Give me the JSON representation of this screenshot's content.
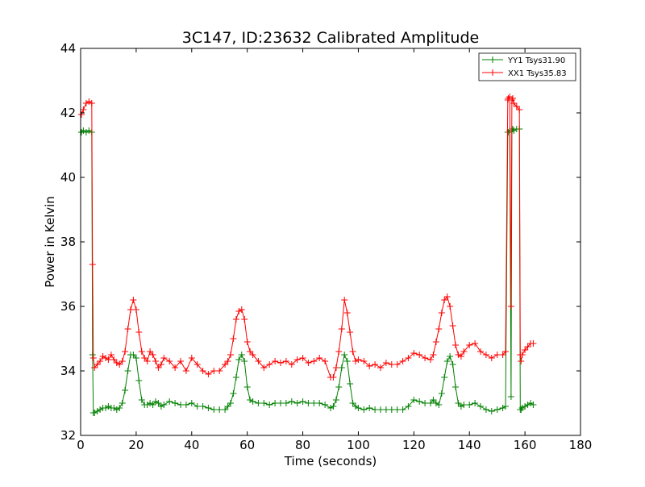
{
  "chart_data": {
    "type": "line",
    "title": "3C147, ID:23632 Calibrated Amplitude",
    "xlabel": "Time (seconds)",
    "ylabel": "Power in Kelvin",
    "xlim": [
      0,
      180
    ],
    "ylim": [
      32,
      44
    ],
    "xticks": [
      "0",
      "20",
      "40",
      "60",
      "80",
      "100",
      "120",
      "140",
      "160",
      "180"
    ],
    "yticks": [
      "32",
      "34",
      "36",
      "38",
      "40",
      "42",
      "44"
    ],
    "grid": false,
    "legend_position": "top-right",
    "marker": "+",
    "series": [
      {
        "name": "YY1 Tsys31.90",
        "color": "#008000",
        "x": [
          0.3,
          1.0,
          2.0,
          3.0,
          4.0,
          4.3,
          4.6,
          5.0,
          6.0,
          7.0,
          8.0,
          9.0,
          10.0,
          11.0,
          12.0,
          13.0,
          14.0,
          15.0,
          16.0,
          17.0,
          18.0,
          19.0,
          20.0,
          21.0,
          22.0,
          23.0,
          24.0,
          25.0,
          26.0,
          27.0,
          28.0,
          29.0,
          30.0,
          32.0,
          34.0,
          36.0,
          38.0,
          40.0,
          42.0,
          44.0,
          46.0,
          48.0,
          50.0,
          52.0,
          53.0,
          54.0,
          55.0,
          56.0,
          57.0,
          58.0,
          59.0,
          60.0,
          61.0,
          62.0,
          64.0,
          66.0,
          68.0,
          70.0,
          72.0,
          74.0,
          76.0,
          78.0,
          80.0,
          82.0,
          84.0,
          86.0,
          88.0,
          90.0,
          91.0,
          92.0,
          93.0,
          94.0,
          95.0,
          96.0,
          97.0,
          98.0,
          99.0,
          100.0,
          102.0,
          104.0,
          106.0,
          108.0,
          110.0,
          112.0,
          114.0,
          116.0,
          118.0,
          120.0,
          122.0,
          124.0,
          126.0,
          127.0,
          128.0,
          129.0,
          130.0,
          131.0,
          132.0,
          133.0,
          134.0,
          135.0,
          136.0,
          137.0,
          138.0,
          140.0,
          142.0,
          144.0,
          146.0,
          148.0,
          150.0,
          152.0,
          153.0,
          153.8,
          154.0,
          154.5,
          155.0,
          155.3,
          155.6,
          156.0,
          157.0,
          158.0,
          158.3,
          158.6,
          159.0,
          160.0,
          161.0,
          162.0,
          163.0
        ],
        "y": [
          41.4,
          41.45,
          41.4,
          41.45,
          41.4,
          34.5,
          32.7,
          32.7,
          32.75,
          32.8,
          32.85,
          32.85,
          32.9,
          32.85,
          32.85,
          32.8,
          32.85,
          33.0,
          33.4,
          34.0,
          34.5,
          34.5,
          34.4,
          33.7,
          33.1,
          32.95,
          32.95,
          33.0,
          32.95,
          33.05,
          33.0,
          32.9,
          32.95,
          33.05,
          33.0,
          32.95,
          32.95,
          33.0,
          32.9,
          32.9,
          32.85,
          32.8,
          32.8,
          32.8,
          32.9,
          33.0,
          33.3,
          33.8,
          34.35,
          34.5,
          34.3,
          33.5,
          33.1,
          33.05,
          33.0,
          33.0,
          32.95,
          33.0,
          33.0,
          33.0,
          33.05,
          33.0,
          33.05,
          33.0,
          33.0,
          33.0,
          32.95,
          32.85,
          32.9,
          33.1,
          33.5,
          34.1,
          34.5,
          34.3,
          33.6,
          33.0,
          32.9,
          32.85,
          32.8,
          32.85,
          32.8,
          32.8,
          32.8,
          32.8,
          32.8,
          32.8,
          32.9,
          33.1,
          33.05,
          33.0,
          33.0,
          33.1,
          33.0,
          32.95,
          33.3,
          33.8,
          34.3,
          34.45,
          34.2,
          33.5,
          33.0,
          32.9,
          32.95,
          32.95,
          33.0,
          32.9,
          32.8,
          32.75,
          32.8,
          32.85,
          32.9,
          41.4,
          41.4,
          41.45,
          33.2,
          41.45,
          41.5,
          41.45,
          41.5,
          41.5,
          32.8,
          32.8,
          32.85,
          32.9,
          32.95,
          33.0,
          32.95
        ]
      },
      {
        "name": "XX1 Tsys35.83",
        "color": "#ff0000",
        "x": [
          0.3,
          1.0,
          2.0,
          3.0,
          4.0,
          4.3,
          4.6,
          5.0,
          6.0,
          7.0,
          8.0,
          9.0,
          10.0,
          11.0,
          12.0,
          13.0,
          14.0,
          15.0,
          16.0,
          17.0,
          18.0,
          19.0,
          20.0,
          21.0,
          22.0,
          23.0,
          24.0,
          25.0,
          26.0,
          27.0,
          28.0,
          29.0,
          30.0,
          32.0,
          34.0,
          36.0,
          38.0,
          40.0,
          42.0,
          44.0,
          46.0,
          48.0,
          50.0,
          52.0,
          53.0,
          54.0,
          55.0,
          56.0,
          57.0,
          58.0,
          59.0,
          60.0,
          61.0,
          62.0,
          64.0,
          66.0,
          68.0,
          70.0,
          72.0,
          74.0,
          76.0,
          78.0,
          80.0,
          82.0,
          84.0,
          86.0,
          88.0,
          90.0,
          91.0,
          92.0,
          93.0,
          94.0,
          95.0,
          96.0,
          97.0,
          98.0,
          99.0,
          100.0,
          102.0,
          104.0,
          106.0,
          108.0,
          110.0,
          112.0,
          114.0,
          116.0,
          118.0,
          120.0,
          122.0,
          124.0,
          126.0,
          127.0,
          128.0,
          129.0,
          130.0,
          131.0,
          132.0,
          133.0,
          134.0,
          135.0,
          136.0,
          137.0,
          138.0,
          140.0,
          142.0,
          144.0,
          146.0,
          148.0,
          150.0,
          152.0,
          153.0,
          153.8,
          154.0,
          154.5,
          155.0,
          155.3,
          155.6,
          156.0,
          157.0,
          158.0,
          158.3,
          158.6,
          159.0,
          160.0,
          161.0,
          162.0,
          163.0
        ],
        "y": [
          41.95,
          42.1,
          42.3,
          42.35,
          42.3,
          37.3,
          34.4,
          34.1,
          34.2,
          34.3,
          34.45,
          34.4,
          34.35,
          34.5,
          34.35,
          34.25,
          34.2,
          34.3,
          34.6,
          35.3,
          35.9,
          36.2,
          35.9,
          35.2,
          34.6,
          34.4,
          34.3,
          34.6,
          34.5,
          34.3,
          34.1,
          34.2,
          34.4,
          34.3,
          34.1,
          34.3,
          34.0,
          34.4,
          34.2,
          34.0,
          33.9,
          34.0,
          34.0,
          34.2,
          34.3,
          34.5,
          35.0,
          35.6,
          35.85,
          35.9,
          35.6,
          34.9,
          34.6,
          34.5,
          34.3,
          34.1,
          34.2,
          34.3,
          34.25,
          34.3,
          34.2,
          34.35,
          34.4,
          34.25,
          34.3,
          34.4,
          34.3,
          33.8,
          33.8,
          34.1,
          34.6,
          35.3,
          36.2,
          35.8,
          35.2,
          34.6,
          34.3,
          34.35,
          34.3,
          34.15,
          34.2,
          34.1,
          34.25,
          34.2,
          34.2,
          34.3,
          34.4,
          34.55,
          34.5,
          34.4,
          34.35,
          34.5,
          34.9,
          35.3,
          35.8,
          36.2,
          36.3,
          36.0,
          35.4,
          34.8,
          34.5,
          34.45,
          34.6,
          34.8,
          34.85,
          34.6,
          34.5,
          34.4,
          34.5,
          34.5,
          34.6,
          42.4,
          42.45,
          42.5,
          36.0,
          42.4,
          42.45,
          42.3,
          42.2,
          42.1,
          34.5,
          34.3,
          34.5,
          34.65,
          34.75,
          34.85,
          34.85
        ]
      }
    ]
  }
}
